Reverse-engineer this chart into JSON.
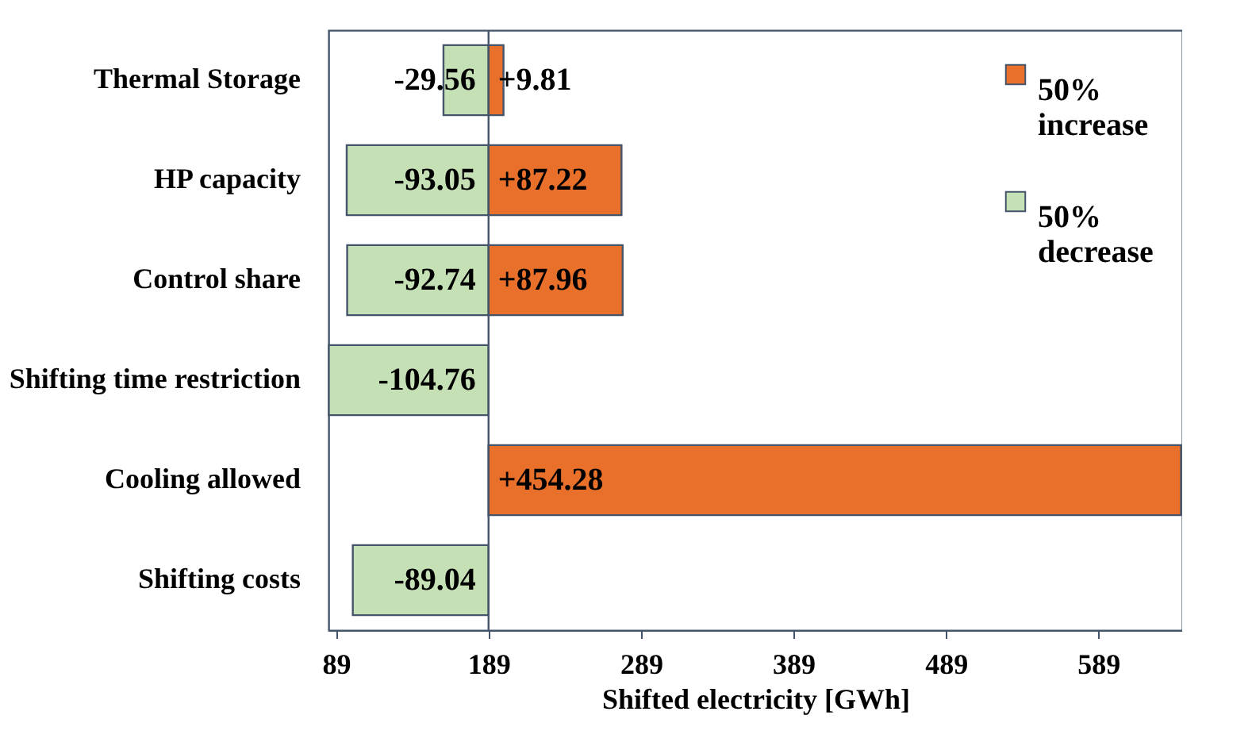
{
  "chart_data": {
    "type": "bar",
    "orientation": "horizontal",
    "xlabel": "Shifted electricity [GWh]",
    "categories": [
      "Thermal Storage",
      "HP capacity",
      "Control share",
      "Shifting time restriction",
      "Cooling allowed",
      "Shifting costs"
    ],
    "series": [
      {
        "name": "50% increase",
        "color": "#e8702a",
        "values": [
          9.81,
          87.22,
          87.96,
          null,
          454.28,
          null
        ],
        "base": [
          189,
          189,
          189,
          null,
          189,
          null
        ],
        "value_labels": [
          "+9.81",
          "+87.22",
          "+87.96",
          null,
          "+454.28",
          null
        ]
      },
      {
        "name": "50% decrease",
        "color": "#c5e0b4",
        "values": [
          -29.56,
          -93.05,
          -92.74,
          -104.76,
          null,
          -89.04
        ],
        "base": [
          189,
          189,
          189,
          189,
          null,
          189
        ],
        "value_labels": [
          "-29.56",
          "-93.05",
          "-92.74",
          "-104.76",
          null,
          "-89.04"
        ]
      }
    ],
    "xlim": [
      84,
      644
    ],
    "xticks": [
      89,
      189,
      289,
      389,
      489,
      589
    ],
    "ref_lines": [
      {
        "axis": "x",
        "value": 189,
        "color": "#44546a"
      }
    ],
    "grid": false,
    "legend": "top right"
  }
}
